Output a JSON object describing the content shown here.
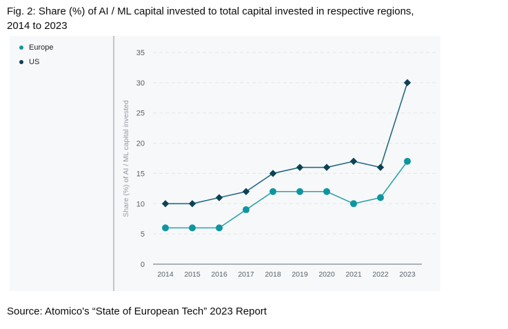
{
  "title": {
    "line1": "Fig. 2: Share (%) of AI / ML capital invested to total capital invested in respective regions,",
    "line2": "2014 to 2023"
  },
  "source": "Source: Atomico's “State of European Tech” 2023 Report",
  "colors": {
    "panel_background": "#f7f8f9",
    "gridline": "#e2e5e8",
    "zero_line": "#5f6b76",
    "divider": "#8e949b",
    "tick_label": "#565f68",
    "axis_title": "#939ca4",
    "europe_accent": "#0e96a0",
    "us_accent": "#0d4254"
  },
  "chart_data": {
    "type": "line",
    "title": "",
    "xlabel": "",
    "ylabel": "Share (%) of AI / ML capital invested",
    "x": [
      "2014",
      "2015",
      "2016",
      "2017",
      "2018",
      "2019",
      "2020",
      "2021",
      "2022",
      "2023"
    ],
    "series": [
      {
        "name": "Europe",
        "marker": "circle",
        "marker_color": "#0e96a0",
        "line_color": "#2aa3ab",
        "values": [
          6,
          6,
          6,
          9,
          12,
          12,
          12,
          10,
          11,
          17
        ]
      },
      {
        "name": "US",
        "marker": "diamond",
        "marker_color": "#0d4254",
        "line_color": "#236a81",
        "values": [
          10,
          10,
          11,
          12,
          15,
          16,
          16,
          17,
          16,
          30
        ]
      }
    ],
    "ylim": [
      0,
      35
    ],
    "yticks": [
      0,
      5,
      10,
      15,
      20,
      25,
      30,
      35
    ],
    "grid": "dashed-horizontal",
    "legend_position": "left"
  }
}
